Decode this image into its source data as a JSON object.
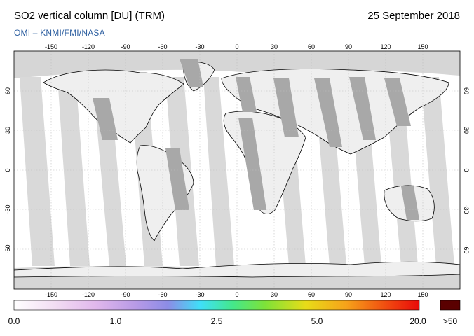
{
  "header": {
    "title": "SO2 vertical column [DU] (TRM)",
    "date": "25 September 2018",
    "credit": "OMI  –  KNMI/FMI/NASA"
  },
  "map": {
    "lon_ticks": [
      "-150",
      "-120",
      "-90",
      "-60",
      "-30",
      "0",
      "30",
      "60",
      "90",
      "120",
      "150"
    ],
    "lat_ticks": [
      "60",
      "30",
      "0",
      "-30",
      "-60"
    ],
    "colors": {
      "ocean_no_data": "#ffffff",
      "swath_gap_light": "#d6d6d6",
      "swath_gap_dark": "#a8a8a8",
      "land_outline": "#000000",
      "grid": "#bdbdbd"
    }
  },
  "colorbar": {
    "labels": [
      "0.0",
      "1.0",
      "2.5",
      "5.0",
      "20.0"
    ],
    "overflow_label": ">50",
    "overflow_color": "#5a0000",
    "stops": [
      "#ffffff",
      "#f2ddf3",
      "#e1b8ec",
      "#b89ae6",
      "#8c8ce6",
      "#3fe0f8",
      "#44e88a",
      "#7ee238",
      "#e8dc18",
      "#f6a21a",
      "#f04a10",
      "#e80a0a"
    ]
  }
}
